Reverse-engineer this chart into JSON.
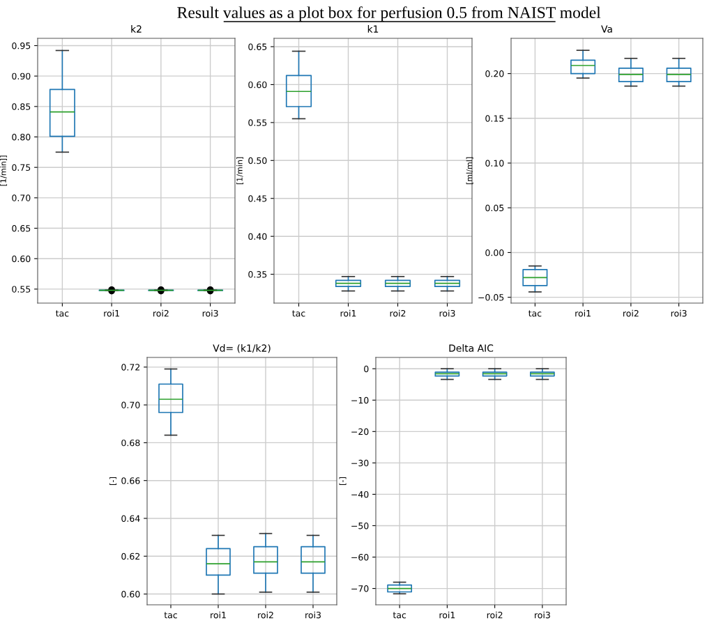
{
  "chart_data": [
    {
      "type": "box",
      "title": "k2",
      "ylabel": "[1/min]]",
      "annotations": [
        "Result values as a plot box for perfusion 0.5 from NAIST model"
      ],
      "categories": [
        "tac",
        "roi1",
        "roi2",
        "roi3"
      ],
      "color": "#1f77b4",
      "grid": true,
      "ylim": [
        0.527,
        0.962
      ],
      "yticks": [
        {
          "value": 0.55,
          "label": "0.55"
        },
        {
          "value": 0.6,
          "label": "0.60"
        },
        {
          "value": 0.65,
          "label": "0.65"
        },
        {
          "value": 0.7,
          "label": "0.70"
        },
        {
          "value": 0.75,
          "label": "0.75"
        },
        {
          "value": 0.8,
          "label": "0.80"
        },
        {
          "value": 0.85,
          "label": "0.85"
        },
        {
          "value": 0.9,
          "label": "0.90"
        },
        {
          "value": 0.95,
          "label": "0.95"
        }
      ],
      "boxes": [
        {
          "low": 0.775,
          "q1": 0.801,
          "median": 0.841,
          "q3": 0.878,
          "high": 0.942
        },
        {
          "low": 0.5475,
          "q1": 0.5477,
          "median": 0.548,
          "q3": 0.5483,
          "high": 0.5485,
          "outliers": [
            0.547,
            0.549
          ]
        },
        {
          "low": 0.5475,
          "q1": 0.5477,
          "median": 0.548,
          "q3": 0.5483,
          "high": 0.5485,
          "outliers": [
            0.547,
            0.549
          ]
        },
        {
          "low": 0.5475,
          "q1": 0.5477,
          "median": 0.548,
          "q3": 0.5483,
          "high": 0.5485,
          "outliers": [
            0.547,
            0.549
          ]
        }
      ]
    },
    {
      "type": "box",
      "title": "k1",
      "ylabel": "[1/min]",
      "categories": [
        "tac",
        "roi1",
        "roi2",
        "roi3"
      ],
      "color": "#1f77b4",
      "grid": true,
      "ylim": [
        0.312,
        0.661
      ],
      "yticks": [
        {
          "value": 0.35,
          "label": "0.35"
        },
        {
          "value": 0.4,
          "label": "0.40"
        },
        {
          "value": 0.45,
          "label": "0.45"
        },
        {
          "value": 0.5,
          "label": "0.50"
        },
        {
          "value": 0.55,
          "label": "0.55"
        },
        {
          "value": 0.6,
          "label": "0.60"
        },
        {
          "value": 0.65,
          "label": "0.65"
        }
      ],
      "boxes": [
        {
          "low": 0.555,
          "q1": 0.571,
          "median": 0.591,
          "q3": 0.612,
          "high": 0.644
        },
        {
          "low": 0.328,
          "q1": 0.334,
          "median": 0.338,
          "q3": 0.342,
          "high": 0.347
        },
        {
          "low": 0.328,
          "q1": 0.334,
          "median": 0.338,
          "q3": 0.342,
          "high": 0.347
        },
        {
          "low": 0.328,
          "q1": 0.334,
          "median": 0.338,
          "q3": 0.342,
          "high": 0.347
        }
      ]
    },
    {
      "type": "box",
      "title": "Va",
      "ylabel": "[ml/ml]",
      "categories": [
        "tac",
        "roi1",
        "roi2",
        "roi3"
      ],
      "color": "#1f77b4",
      "grid": true,
      "ylim": [
        -0.0565,
        0.2394
      ],
      "yticks": [
        {
          "value": -0.05,
          "label": "−0.05"
        },
        {
          "value": 0.0,
          "label": "0.00"
        },
        {
          "value": 0.05,
          "label": "0.05"
        },
        {
          "value": 0.1,
          "label": "0.10"
        },
        {
          "value": 0.15,
          "label": "0.15"
        },
        {
          "value": 0.2,
          "label": "0.20"
        }
      ],
      "boxes": [
        {
          "low": -0.044,
          "q1": -0.037,
          "median": -0.028,
          "q3": -0.019,
          "high": -0.015
        },
        {
          "low": 0.195,
          "q1": 0.2,
          "median": 0.209,
          "q3": 0.215,
          "high": 0.226
        },
        {
          "low": 0.186,
          "q1": 0.191,
          "median": 0.199,
          "q3": 0.206,
          "high": 0.217
        },
        {
          "low": 0.186,
          "q1": 0.191,
          "median": 0.199,
          "q3": 0.206,
          "high": 0.217
        }
      ]
    },
    {
      "type": "box",
      "title": "Vd= (k1/k2)",
      "ylabel": "[-]",
      "categories": [
        "tac",
        "roi1",
        "roi2",
        "roi3"
      ],
      "color": "#1f77b4",
      "grid": true,
      "ylim": [
        0.5943,
        0.7251
      ],
      "yticks": [
        {
          "value": 0.6,
          "label": "0.60"
        },
        {
          "value": 0.62,
          "label": "0.62"
        },
        {
          "value": 0.64,
          "label": "0.64"
        },
        {
          "value": 0.66,
          "label": "0.66"
        },
        {
          "value": 0.68,
          "label": "0.68"
        },
        {
          "value": 0.7,
          "label": "0.70"
        },
        {
          "value": 0.72,
          "label": "0.72"
        }
      ],
      "boxes": [
        {
          "low": 0.684,
          "q1": 0.696,
          "median": 0.703,
          "q3": 0.711,
          "high": 0.719
        },
        {
          "low": 0.6,
          "q1": 0.61,
          "median": 0.616,
          "q3": 0.624,
          "high": 0.631
        },
        {
          "low": 0.601,
          "q1": 0.611,
          "median": 0.617,
          "q3": 0.625,
          "high": 0.632
        },
        {
          "low": 0.601,
          "q1": 0.611,
          "median": 0.617,
          "q3": 0.625,
          "high": 0.631
        }
      ]
    },
    {
      "type": "box",
      "title": "Delta AIC",
      "ylabel": "[-]",
      "categories": [
        "tac",
        "roi1",
        "roi2",
        "roi3"
      ],
      "color": "#1f77b4",
      "grid": true,
      "ylim": [
        -75.2,
        3.6
      ],
      "yticks": [
        {
          "value": -70,
          "label": "−70"
        },
        {
          "value": -60,
          "label": "−60"
        },
        {
          "value": -50,
          "label": "−50"
        },
        {
          "value": -40,
          "label": "−40"
        },
        {
          "value": -30,
          "label": "−30"
        },
        {
          "value": -20,
          "label": "−20"
        },
        {
          "value": -10,
          "label": "−10"
        },
        0
      ],
      "boxes": [
        {
          "low": -71.7,
          "q1": -71.1,
          "median": -70,
          "q3": -68.9,
          "high": -68
        },
        {
          "low": -3.4,
          "q1": -2.3,
          "median": -1.6,
          "q3": -1.1,
          "high": 0
        },
        {
          "low": -3.4,
          "q1": -2.3,
          "median": -1.6,
          "q3": -1.1,
          "high": 0
        },
        {
          "low": -3.4,
          "q1": -2.3,
          "median": -1.6,
          "q3": -1.1,
          "high": 0
        }
      ]
    }
  ]
}
